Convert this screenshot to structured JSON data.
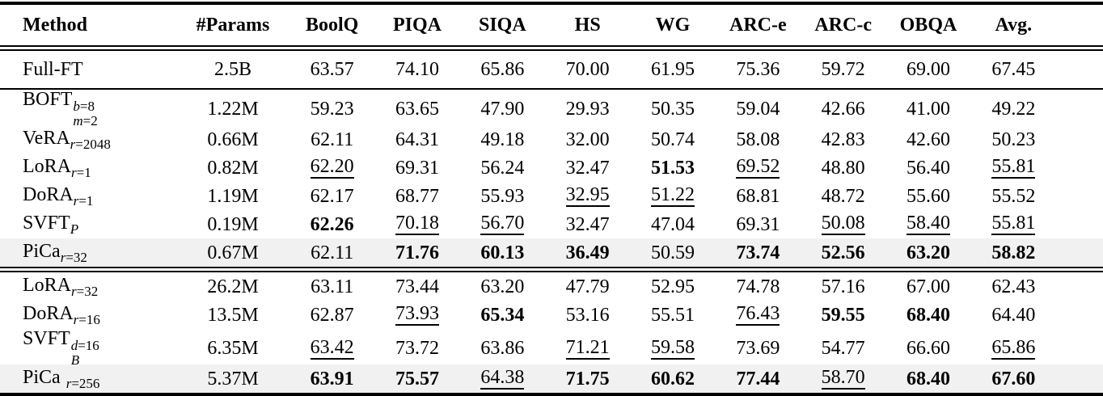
{
  "page": {
    "background": "#ffffff",
    "text_color": "#000000",
    "highlight_color": "#f1f1f1"
  },
  "table": {
    "columns": [
      "Method",
      "#Params",
      "BoolQ",
      "PIQA",
      "SIQA",
      "HS",
      "WG",
      "ARC-e",
      "ARC-c",
      "OBQA",
      "Avg."
    ],
    "sections": [
      {
        "rule_after": "single",
        "rows": [
          {
            "method": {
              "text": "Full-FT"
            },
            "params": "2.5B",
            "highlight": false,
            "row_class": "fullft",
            "values": [
              {
                "v": "63.57",
                "s": "plain"
              },
              {
                "v": "74.10",
                "s": "plain"
              },
              {
                "v": "65.86",
                "s": "plain"
              },
              {
                "v": "70.00",
                "s": "plain"
              },
              {
                "v": "61.95",
                "s": "plain"
              },
              {
                "v": "75.36",
                "s": "plain"
              },
              {
                "v": "59.72",
                "s": "plain"
              },
              {
                "v": "69.00",
                "s": "plain"
              },
              {
                "v": "67.45",
                "s": "plain"
              }
            ]
          }
        ]
      },
      {
        "rule_after": "double",
        "rows": [
          {
            "method": {
              "text": "BOFT",
              "sup": "b=8",
              "sub": "m=2"
            },
            "params": "1.22M",
            "highlight": false,
            "values": [
              {
                "v": "59.23",
                "s": "plain"
              },
              {
                "v": "63.65",
                "s": "plain"
              },
              {
                "v": "47.90",
                "s": "plain"
              },
              {
                "v": "29.93",
                "s": "plain"
              },
              {
                "v": "50.35",
                "s": "plain"
              },
              {
                "v": "59.04",
                "s": "plain"
              },
              {
                "v": "42.66",
                "s": "plain"
              },
              {
                "v": "41.00",
                "s": "plain"
              },
              {
                "v": "49.22",
                "s": "plain"
              }
            ]
          },
          {
            "method": {
              "text": "VeRA",
              "sub": "r=2048"
            },
            "params": "0.66M",
            "highlight": false,
            "values": [
              {
                "v": "62.11",
                "s": "plain"
              },
              {
                "v": "64.31",
                "s": "plain"
              },
              {
                "v": "49.18",
                "s": "plain"
              },
              {
                "v": "32.00",
                "s": "plain"
              },
              {
                "v": "50.74",
                "s": "plain"
              },
              {
                "v": "58.08",
                "s": "plain"
              },
              {
                "v": "42.83",
                "s": "plain"
              },
              {
                "v": "42.60",
                "s": "plain"
              },
              {
                "v": "50.23",
                "s": "plain"
              }
            ]
          },
          {
            "method": {
              "text": "LoRA",
              "sub": "r=1"
            },
            "params": "0.82M",
            "highlight": false,
            "values": [
              {
                "v": "62.20",
                "s": "underline"
              },
              {
                "v": "69.31",
                "s": "plain"
              },
              {
                "v": "56.24",
                "s": "plain"
              },
              {
                "v": "32.47",
                "s": "plain"
              },
              {
                "v": "51.53",
                "s": "bold"
              },
              {
                "v": "69.52",
                "s": "underline"
              },
              {
                "v": "48.80",
                "s": "plain"
              },
              {
                "v": "56.40",
                "s": "plain"
              },
              {
                "v": "55.81",
                "s": "underline"
              }
            ]
          },
          {
            "method": {
              "text": "DoRA",
              "sub": "r=1"
            },
            "params": "1.19M",
            "highlight": false,
            "values": [
              {
                "v": "62.17",
                "s": "plain"
              },
              {
                "v": "68.77",
                "s": "plain"
              },
              {
                "v": "55.93",
                "s": "plain"
              },
              {
                "v": "32.95",
                "s": "underline"
              },
              {
                "v": "51.22",
                "s": "underline"
              },
              {
                "v": "68.81",
                "s": "plain"
              },
              {
                "v": "48.72",
                "s": "plain"
              },
              {
                "v": "55.60",
                "s": "plain"
              },
              {
                "v": "55.52",
                "s": "plain"
              }
            ]
          },
          {
            "method": {
              "text": "SVFT",
              "sub": "P"
            },
            "params": "0.19M",
            "highlight": false,
            "values": [
              {
                "v": "62.26",
                "s": "bold"
              },
              {
                "v": "70.18",
                "s": "underline"
              },
              {
                "v": "56.70",
                "s": "underline"
              },
              {
                "v": "32.47",
                "s": "plain"
              },
              {
                "v": "47.04",
                "s": "plain"
              },
              {
                "v": "69.31",
                "s": "plain"
              },
              {
                "v": "50.08",
                "s": "underline"
              },
              {
                "v": "58.40",
                "s": "underline"
              },
              {
                "v": "55.81",
                "s": "underline"
              }
            ]
          },
          {
            "method": {
              "text": "PiCa",
              "sub": "r=32"
            },
            "params": "0.67M",
            "highlight": true,
            "values": [
              {
                "v": "62.11",
                "s": "plain"
              },
              {
                "v": "71.76",
                "s": "bold"
              },
              {
                "v": "60.13",
                "s": "bold"
              },
              {
                "v": "36.49",
                "s": "bold"
              },
              {
                "v": "50.59",
                "s": "plain"
              },
              {
                "v": "73.74",
                "s": "bold"
              },
              {
                "v": "52.56",
                "s": "bold"
              },
              {
                "v": "63.20",
                "s": "bold"
              },
              {
                "v": "58.82",
                "s": "bold"
              }
            ]
          }
        ]
      },
      {
        "rule_after": "none",
        "rows": [
          {
            "method": {
              "text": "LoRA",
              "sub": "r=32"
            },
            "params": "26.2M",
            "highlight": false,
            "values": [
              {
                "v": "63.11",
                "s": "plain"
              },
              {
                "v": "73.44",
                "s": "plain"
              },
              {
                "v": "63.20",
                "s": "plain"
              },
              {
                "v": "47.79",
                "s": "plain"
              },
              {
                "v": "52.95",
                "s": "plain"
              },
              {
                "v": "74.78",
                "s": "plain"
              },
              {
                "v": "57.16",
                "s": "plain"
              },
              {
                "v": "67.00",
                "s": "plain"
              },
              {
                "v": "62.43",
                "s": "plain"
              }
            ]
          },
          {
            "method": {
              "text": "DoRA",
              "sub": "r=16"
            },
            "params": "13.5M",
            "highlight": false,
            "values": [
              {
                "v": "62.87",
                "s": "plain"
              },
              {
                "v": "73.93",
                "s": "underline"
              },
              {
                "v": "65.34",
                "s": "bold"
              },
              {
                "v": "53.16",
                "s": "plain"
              },
              {
                "v": "55.51",
                "s": "plain"
              },
              {
                "v": "76.43",
                "s": "underline"
              },
              {
                "v": "59.55",
                "s": "bold"
              },
              {
                "v": "68.40",
                "s": "bold"
              },
              {
                "v": "64.40",
                "s": "plain"
              }
            ]
          },
          {
            "method": {
              "text": "SVFT",
              "sup": "d=16",
              "sub": "B"
            },
            "params": "6.35M",
            "highlight": false,
            "values": [
              {
                "v": "63.42",
                "s": "underline"
              },
              {
                "v": "73.72",
                "s": "plain"
              },
              {
                "v": "63.86",
                "s": "plain"
              },
              {
                "v": "71.21",
                "s": "underline"
              },
              {
                "v": "59.58",
                "s": "underline"
              },
              {
                "v": "73.69",
                "s": "plain"
              },
              {
                "v": "54.77",
                "s": "plain"
              },
              {
                "v": "66.60",
                "s": "plain"
              },
              {
                "v": "65.86",
                "s": "underline"
              }
            ]
          },
          {
            "method": {
              "text": "PiCa",
              "sub": "r=256",
              "gap_before_sub": true
            },
            "params": "5.37M",
            "highlight": true,
            "values": [
              {
                "v": "63.91",
                "s": "bold"
              },
              {
                "v": "75.57",
                "s": "bold"
              },
              {
                "v": "64.38",
                "s": "underline"
              },
              {
                "v": "71.75",
                "s": "bold"
              },
              {
                "v": "60.62",
                "s": "bold"
              },
              {
                "v": "77.44",
                "s": "bold"
              },
              {
                "v": "58.70",
                "s": "underline"
              },
              {
                "v": "68.40",
                "s": "bold"
              },
              {
                "v": "67.60",
                "s": "bold"
              }
            ]
          }
        ]
      }
    ]
  }
}
